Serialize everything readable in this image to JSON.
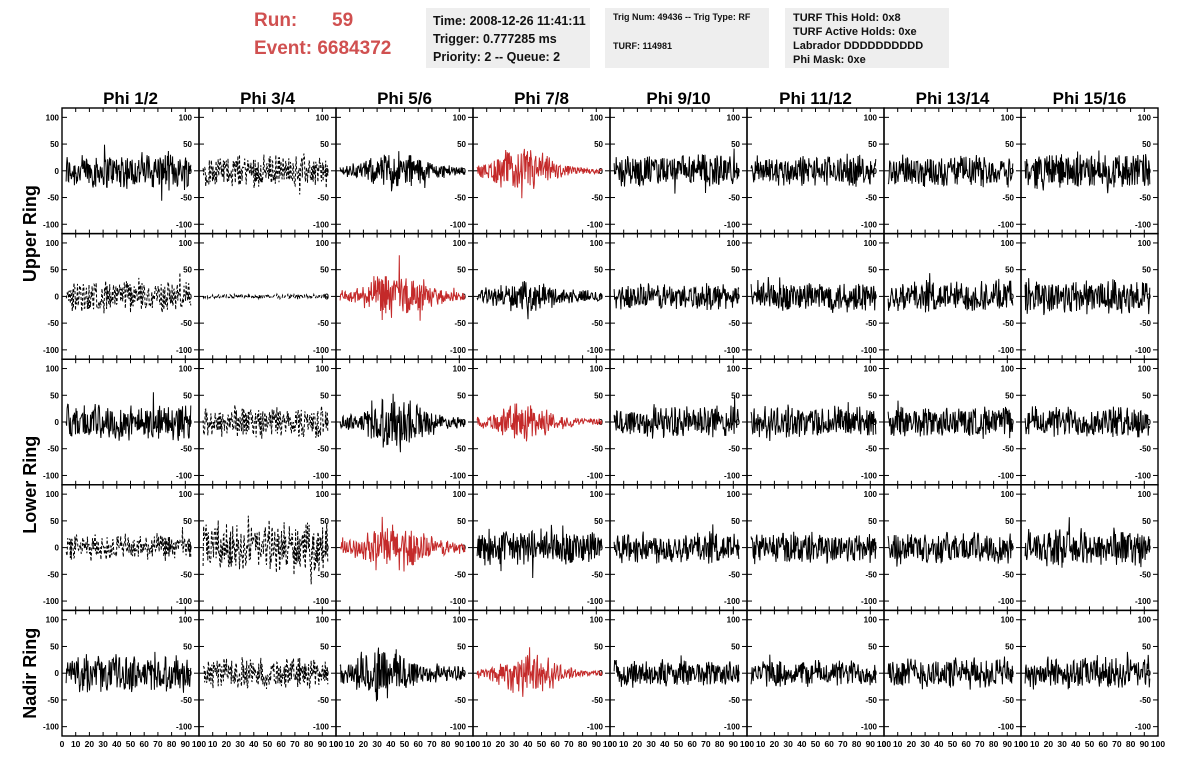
{
  "header": {
    "run_label": "Run:",
    "run_value": "59",
    "event_label": "Event:",
    "event_value": "6684372",
    "time_lines": [
      "Time: 2008-12-26 11:41:11",
      "Trigger: 0.777285 ms",
      "Priority: 2 -- Queue: 2"
    ],
    "trig_lines": [
      "Trig Num: 49436 -- Trig Type: RF",
      "TURF: 114981"
    ],
    "turf_lines": [
      "TURF This Hold: 0x8",
      "TURF Active Holds: 0xe",
      "Labrador DDDDDDDDDD",
      "Phi Mask: 0xe"
    ],
    "colors": {
      "run_text": "#d05050",
      "info_bg": "#eeeeee"
    }
  },
  "chart_data": {
    "type": "line",
    "columns": [
      "Phi 1/2",
      "Phi 3/4",
      "Phi 5/6",
      "Phi 7/8",
      "Phi 9/10",
      "Phi 11/12",
      "Phi 13/14",
      "Phi 15/16"
    ],
    "rows": [
      "Upper Ring",
      "Lower Ring",
      "Nadir Ring"
    ],
    "xlim": [
      0,
      100
    ],
    "ylim": [
      -110,
      110
    ],
    "x_ticks": [
      0,
      10,
      20,
      30,
      40,
      50,
      60,
      70,
      80,
      90,
      100
    ],
    "y_ticks": [
      100,
      50,
      0,
      -50,
      -100
    ],
    "series_colors": {
      "normal": "#000000",
      "triggered": "#c42a2a"
    },
    "panels": [
      [
        {
          "style": "solid",
          "color": "black",
          "amp": 35,
          "burst": 0
        },
        {
          "style": "dashed",
          "color": "black",
          "amp": 30,
          "burst": 0
        },
        {
          "style": "solid",
          "color": "black",
          "amp": 50,
          "burst": 0.6
        },
        {
          "style": "solid",
          "color": "red",
          "amp": 55,
          "burst": 0.8
        },
        {
          "style": "solid",
          "color": "black",
          "amp": 30,
          "burst": 0
        },
        {
          "style": "solid",
          "color": "black",
          "amp": 30,
          "burst": 0
        },
        {
          "style": "solid",
          "color": "black",
          "amp": 30,
          "burst": 0
        },
        {
          "style": "solid",
          "color": "black",
          "amp": 35,
          "burst": 0
        }
      ],
      [
        {
          "style": "dashed",
          "color": "black",
          "amp": 30,
          "burst": 0
        },
        {
          "style": "dashed",
          "color": "black",
          "amp": 4,
          "burst": 0
        },
        {
          "style": "solid",
          "color": "red",
          "amp": 60,
          "burst": 0.7
        },
        {
          "style": "solid",
          "color": "black",
          "amp": 40,
          "burst": 0.4
        },
        {
          "style": "solid",
          "color": "black",
          "amp": 25,
          "burst": 0
        },
        {
          "style": "solid",
          "color": "black",
          "amp": 30,
          "burst": 0
        },
        {
          "style": "solid",
          "color": "black",
          "amp": 30,
          "burst": 0
        },
        {
          "style": "solid",
          "color": "black",
          "amp": 35,
          "burst": 0
        }
      ],
      [
        {
          "style": "solid",
          "color": "black",
          "amp": 35,
          "burst": 0
        },
        {
          "style": "dashed",
          "color": "black",
          "amp": 30,
          "burst": 0
        },
        {
          "style": "solid",
          "color": "black",
          "amp": 65,
          "burst": 0.7
        },
        {
          "style": "solid",
          "color": "red",
          "amp": 45,
          "burst": 0.7
        },
        {
          "style": "solid",
          "color": "black",
          "amp": 30,
          "burst": 0
        },
        {
          "style": "solid",
          "color": "black",
          "amp": 30,
          "burst": 0
        },
        {
          "style": "solid",
          "color": "black",
          "amp": 30,
          "burst": 0
        },
        {
          "style": "solid",
          "color": "black",
          "amp": 30,
          "burst": 0
        }
      ],
      [
        {
          "style": "dashed",
          "color": "black",
          "amp": 25,
          "burst": 0
        },
        {
          "style": "dashed",
          "color": "black",
          "amp": 45,
          "burst": 0
        },
        {
          "style": "solid",
          "color": "red",
          "amp": 60,
          "burst": 0.6
        },
        {
          "style": "solid",
          "color": "black",
          "amp": 35,
          "burst": 0
        },
        {
          "style": "solid",
          "color": "black",
          "amp": 30,
          "burst": 0
        },
        {
          "style": "solid",
          "color": "black",
          "amp": 30,
          "burst": 0
        },
        {
          "style": "solid",
          "color": "black",
          "amp": 30,
          "burst": 0
        },
        {
          "style": "solid",
          "color": "black",
          "amp": 35,
          "burst": 0
        }
      ],
      [
        {
          "style": "solid",
          "color": "black",
          "amp": 35,
          "burst": 0
        },
        {
          "style": "dashed",
          "color": "black",
          "amp": 30,
          "burst": 0
        },
        {
          "style": "solid",
          "color": "black",
          "amp": 70,
          "burst": 0.6
        },
        {
          "style": "solid",
          "color": "red",
          "amp": 50,
          "burst": 0.8
        },
        {
          "style": "solid",
          "color": "black",
          "amp": 25,
          "burst": 0
        },
        {
          "style": "solid",
          "color": "black",
          "amp": 25,
          "burst": 0
        },
        {
          "style": "solid",
          "color": "black",
          "amp": 30,
          "burst": 0
        },
        {
          "style": "solid",
          "color": "black",
          "amp": 30,
          "burst": 0
        }
      ]
    ]
  }
}
